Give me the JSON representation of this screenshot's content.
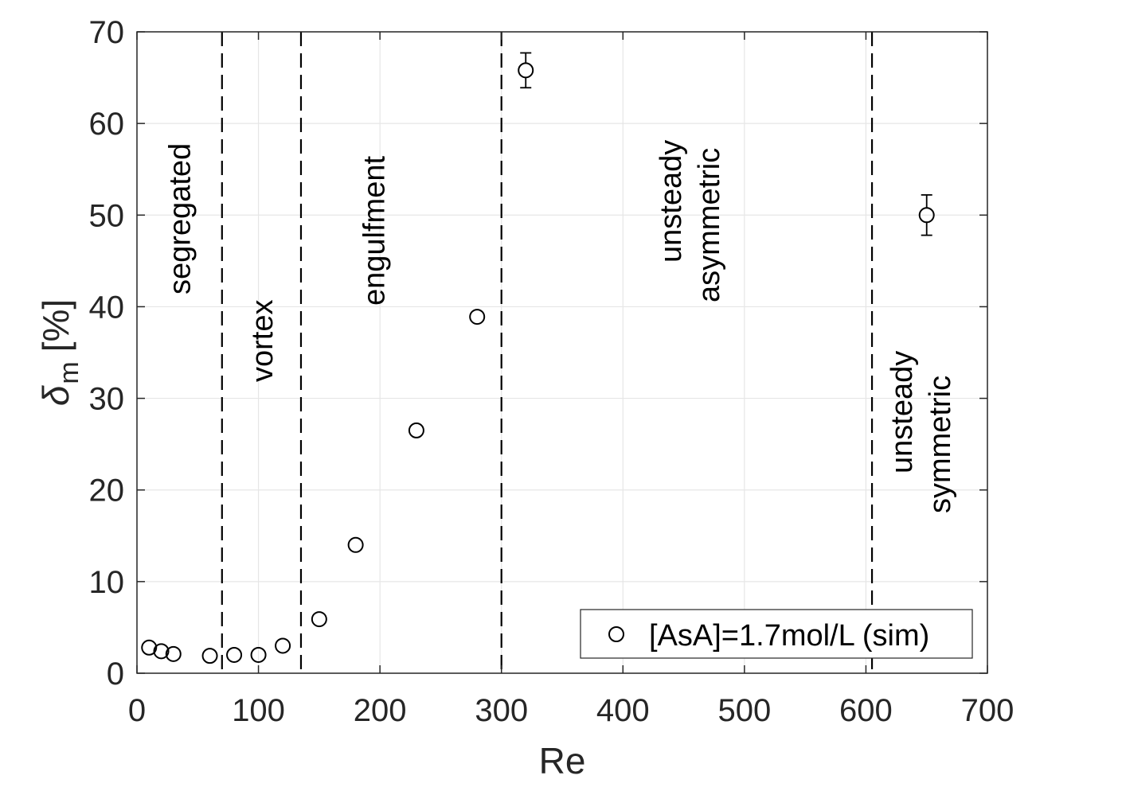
{
  "chart_data": {
    "type": "scatter",
    "xlabel": "Re",
    "ylabel_symbol": "δ",
    "ylabel_subscript": "m",
    "ylabel_unit": "[%]",
    "xlim": [
      0,
      700
    ],
    "ylim": [
      0,
      70
    ],
    "xticks": [
      0,
      100,
      200,
      300,
      400,
      500,
      600,
      700
    ],
    "yticks": [
      0,
      10,
      20,
      30,
      40,
      50,
      60,
      70
    ],
    "grid": true,
    "legend_position": "bottom-right",
    "series": [
      {
        "name": "[AsA]=1.7mol/L (sim)",
        "marker": "open-circle",
        "color": "#000000",
        "points": [
          {
            "x": 10,
            "y": 2.8
          },
          {
            "x": 20,
            "y": 2.4
          },
          {
            "x": 30,
            "y": 2.1
          },
          {
            "x": 60,
            "y": 1.9
          },
          {
            "x": 80,
            "y": 2.0
          },
          {
            "x": 100,
            "y": 2.0
          },
          {
            "x": 120,
            "y": 3.0
          },
          {
            "x": 150,
            "y": 5.9
          },
          {
            "x": 180,
            "y": 14.0
          },
          {
            "x": 230,
            "y": 26.5
          },
          {
            "x": 280,
            "y": 38.9
          },
          {
            "x": 320,
            "y": 65.8,
            "err": 1.9
          },
          {
            "x": 650,
            "y": 50.0,
            "err": 2.2
          }
        ]
      }
    ],
    "boundaries": [
      70,
      135,
      300,
      605
    ],
    "regimes": [
      {
        "lines": [
          "segregated"
        ],
        "x": 35
      },
      {
        "lines": [
          "vortex"
        ],
        "x": 103
      },
      {
        "lines": [
          "engulfment"
        ],
        "x": 195
      },
      {
        "lines": [
          "unsteady",
          "asymmetric"
        ],
        "x": 455
      },
      {
        "lines": [
          "unsteady",
          "symmetric"
        ],
        "x": 645
      }
    ]
  }
}
